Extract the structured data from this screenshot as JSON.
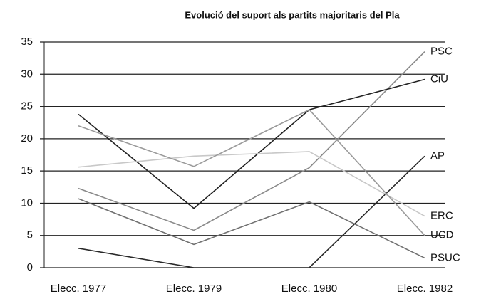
{
  "chart_data": {
    "type": "line",
    "title": "Evolució del suport als partits majoritaris del Pla",
    "categories": [
      "Elecc. 1977",
      "Elecc. 1979",
      "Elecc. 1980",
      "Elecc. 1982"
    ],
    "series": [
      {
        "name": "PSC",
        "color": "#8a8a8a",
        "values": [
          12.3,
          5.8,
          15.5,
          33.5
        ]
      },
      {
        "name": "CiU",
        "color": "#222222",
        "values": [
          23.8,
          9.2,
          24.5,
          29.2
        ]
      },
      {
        "name": "AP",
        "color": "#2a2a2a",
        "values": [
          3,
          0,
          0,
          17.3
        ]
      },
      {
        "name": "ERC",
        "color": "#c8c8c8",
        "values": [
          15.6,
          17.3,
          18,
          8
        ]
      },
      {
        "name": "UCD",
        "color": "#9a9a9a",
        "values": [
          22,
          15.7,
          24.5,
          5
        ]
      },
      {
        "name": "PSUC",
        "color": "#707070",
        "values": [
          10.7,
          3.6,
          10.2,
          1.5
        ]
      }
    ],
    "ylim": [
      0,
      35
    ],
    "yticks": [
      0,
      5,
      10,
      15,
      20,
      25,
      30,
      35
    ],
    "grid": true
  }
}
